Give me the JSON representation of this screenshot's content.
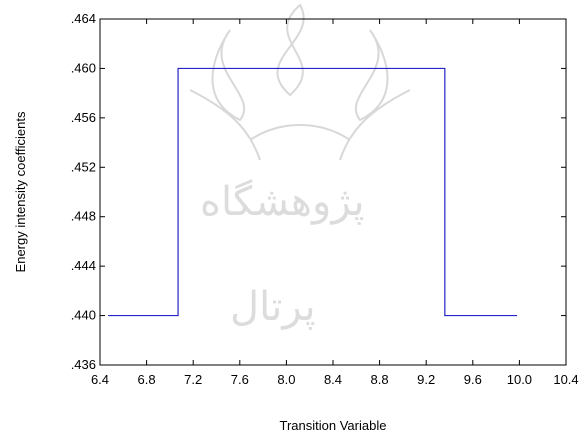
{
  "chart_data": {
    "type": "line",
    "title": "",
    "xlabel": "Transition Variable",
    "ylabel": "Energy intensity coefficients",
    "xlim": [
      6.4,
      10.4
    ],
    "ylim": [
      0.436,
      0.464
    ],
    "x_ticks": [
      6.4,
      6.8,
      7.2,
      7.6,
      8.0,
      8.4,
      8.8,
      9.2,
      9.6,
      10.0,
      10.4
    ],
    "x_tick_labels": [
      "6.4",
      "6.8",
      "7.2",
      "7.6",
      "8.0",
      "8.4",
      "8.8",
      "9.2",
      "9.6",
      "10.0",
      "10.4"
    ],
    "y_ticks": [
      0.436,
      0.44,
      0.444,
      0.448,
      0.452,
      0.456,
      0.46,
      0.464
    ],
    "y_tick_labels": [
      ".436",
      ".440",
      ".444",
      ".448",
      ".452",
      ".456",
      ".460",
      ".464"
    ],
    "grid": false,
    "series": [
      {
        "color": "#2323c8",
        "points": [
          [
            6.47,
            0.44
          ],
          [
            7.07,
            0.44
          ],
          [
            7.07,
            0.46
          ],
          [
            9.36,
            0.46
          ],
          [
            9.36,
            0.44
          ],
          [
            9.98,
            0.44
          ]
        ]
      }
    ]
  }
}
